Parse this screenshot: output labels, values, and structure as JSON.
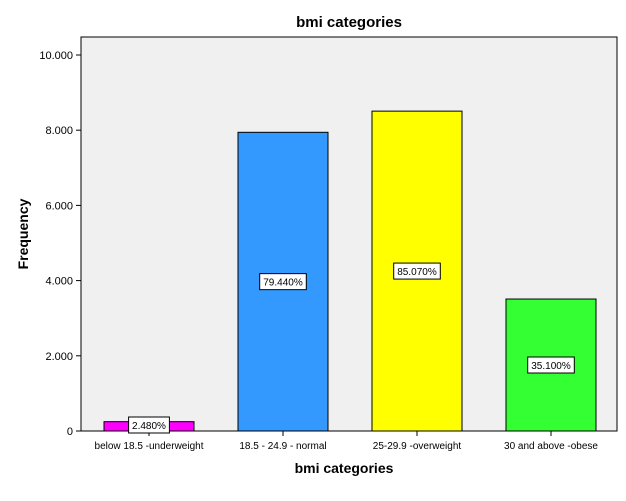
{
  "chart_data": {
    "type": "bar",
    "title": "bmi categories",
    "xlabel": "bmi categories",
    "ylabel": "Frequency",
    "ylim": [
      0,
      10000
    ],
    "yticks": [
      0,
      2000,
      4000,
      6000,
      8000,
      10000
    ],
    "ytick_labels": [
      "0",
      "2.000",
      "4.000",
      "6.000",
      "8.000",
      "10.000"
    ],
    "categories": [
      "below 18.5 -underweight",
      "18.5 - 24.9 - normal",
      "25-29.9 -overweight",
      "30 and above -obese"
    ],
    "values": [
      248,
      7944,
      8507,
      3510
    ],
    "data_labels": [
      "2.480%",
      "79.440%",
      "85.070%",
      "35.100%"
    ],
    "colors": [
      "#ff00ff",
      "#3399ff",
      "#ffff00",
      "#33ff33"
    ],
    "plot_background": "#f0f0f0",
    "grid": false,
    "legend": "none"
  }
}
